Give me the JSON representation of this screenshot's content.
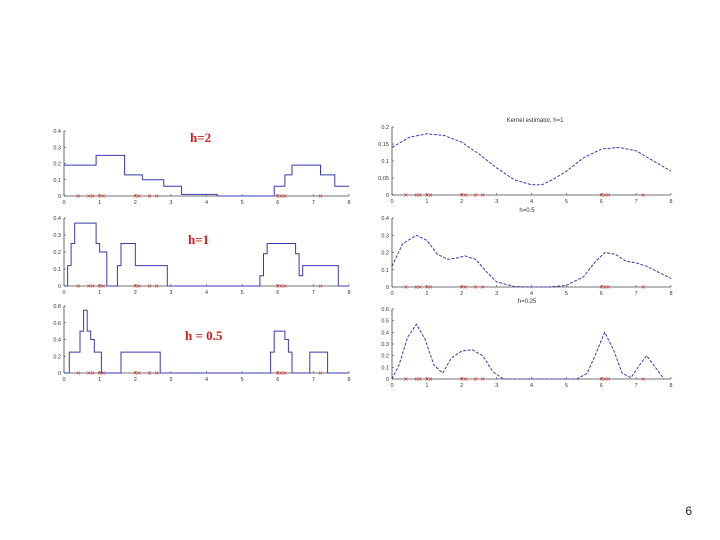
{
  "slide": {
    "number": "6"
  },
  "colors": {
    "curve": "#3a3ab0",
    "marker": "#dd2222",
    "axis": "#444444"
  },
  "sample_points": [
    0.4,
    0.7,
    0.8,
    1.0,
    1.1,
    2.0,
    2.1,
    2.4,
    2.6,
    6.0,
    6.1,
    6.2,
    7.2
  ],
  "chart_data": [
    {
      "type": "line",
      "title": "",
      "label": "h=2",
      "xlim": [
        0,
        8
      ],
      "ylim": [
        0,
        0.4
      ],
      "xticks": [
        "0",
        "1",
        "2",
        "3",
        "4",
        "5",
        "6",
        "7",
        "8"
      ],
      "yticks": [
        "0",
        "0.1",
        "0.2",
        "0.3",
        "0.4"
      ],
      "x": [
        0,
        0.9,
        0.9,
        1.7,
        1.7,
        2.2,
        2.2,
        2.8,
        2.8,
        3.3,
        3.3,
        4.3,
        4.3,
        5.9,
        5.9,
        6.2,
        6.2,
        6.4,
        6.4,
        7.2,
        7.2,
        7.6,
        7.6,
        8.0
      ],
      "y": [
        0.19,
        0.19,
        0.25,
        0.25,
        0.13,
        0.13,
        0.1,
        0.1,
        0.06,
        0.06,
        0.01,
        0.01,
        0.0,
        0.0,
        0.06,
        0.06,
        0.13,
        0.13,
        0.19,
        0.19,
        0.13,
        0.13,
        0.06,
        0.06
      ]
    },
    {
      "type": "line",
      "title": "",
      "label": "h=1",
      "xlim": [
        0,
        8
      ],
      "ylim": [
        0,
        0.4
      ],
      "xticks": [
        "0",
        "1",
        "2",
        "3",
        "4",
        "5",
        "6",
        "7",
        "8"
      ],
      "yticks": [
        "0",
        "0.1",
        "0.2",
        "0.3",
        "0.4"
      ],
      "x": [
        0,
        0.1,
        0.1,
        0.2,
        0.2,
        0.3,
        0.3,
        0.6,
        0.6,
        0.9,
        0.9,
        1.0,
        1.0,
        1.2,
        1.2,
        1.5,
        1.5,
        1.6,
        1.6,
        1.9,
        1.9,
        2.0,
        2.0,
        2.4,
        2.4,
        2.6,
        2.6,
        2.9,
        2.9,
        3.1,
        3.1,
        5.5,
        5.5,
        5.6,
        5.6,
        5.7,
        5.7,
        6.5,
        6.5,
        6.6,
        6.6,
        6.7,
        6.7,
        7.0,
        7.0,
        7.7,
        7.7,
        8.0
      ],
      "y": [
        0.0,
        0.0,
        0.12,
        0.12,
        0.25,
        0.25,
        0.37,
        0.37,
        0.37,
        0.37,
        0.25,
        0.25,
        0.2,
        0.2,
        0.0,
        0.0,
        0.12,
        0.12,
        0.25,
        0.25,
        0.25,
        0.25,
        0.12,
        0.12,
        0.12,
        0.12,
        0.12,
        0.12,
        0.0,
        0.0,
        0.0,
        0.0,
        0.06,
        0.06,
        0.19,
        0.19,
        0.25,
        0.25,
        0.19,
        0.19,
        0.06,
        0.06,
        0.12,
        0.12,
        0.12,
        0.12,
        0.0,
        0.0
      ]
    },
    {
      "type": "line",
      "title": "",
      "label": "h = 0.5",
      "xlim": [
        0,
        8
      ],
      "ylim": [
        0,
        0.8
      ],
      "xticks": [
        "0",
        "1",
        "2",
        "3",
        "4",
        "5",
        "6",
        "7",
        "8"
      ],
      "yticks": [
        "0",
        "0.2",
        "0.4",
        "0.6",
        "0.8"
      ],
      "x": [
        0,
        0.15,
        0.15,
        0.45,
        0.45,
        0.55,
        0.55,
        0.65,
        0.65,
        0.75,
        0.75,
        0.85,
        0.85,
        0.95,
        0.95,
        1.05,
        1.05,
        1.6,
        1.6,
        2.2,
        2.2,
        2.3,
        2.3,
        2.7,
        2.7,
        5.8,
        5.8,
        5.9,
        5.9,
        6.2,
        6.2,
        6.3,
        6.3,
        6.4,
        6.4,
        6.9,
        6.9,
        7.4,
        7.4,
        8.0
      ],
      "y": [
        0.0,
        0.0,
        0.25,
        0.25,
        0.5,
        0.5,
        0.75,
        0.75,
        0.5,
        0.5,
        0.4,
        0.4,
        0.25,
        0.25,
        0.25,
        0.25,
        0.0,
        0.0,
        0.25,
        0.25,
        0.25,
        0.25,
        0.25,
        0.25,
        0.0,
        0.0,
        0.25,
        0.25,
        0.5,
        0.5,
        0.4,
        0.4,
        0.25,
        0.25,
        0.0,
        0.0,
        0.25,
        0.25,
        0.0,
        0.0
      ]
    },
    {
      "type": "line",
      "title": "Kernel estimator, h=1",
      "label": "",
      "xlim": [
        0,
        8
      ],
      "ylim": [
        0,
        0.2
      ],
      "xticks": [
        "0",
        "1",
        "2",
        "3",
        "4",
        "5",
        "6",
        "7",
        "8"
      ],
      "yticks": [
        "0",
        "0.05",
        "0.1",
        "0.15",
        "0.2"
      ],
      "x": [
        0,
        0.5,
        1.0,
        1.5,
        2.0,
        2.5,
        3.0,
        3.5,
        4.0,
        4.3,
        4.6,
        5.0,
        5.5,
        6.0,
        6.5,
        7.0,
        7.5,
        8.0
      ],
      "y": [
        0.14,
        0.17,
        0.18,
        0.175,
        0.155,
        0.12,
        0.08,
        0.045,
        0.03,
        0.03,
        0.045,
        0.07,
        0.11,
        0.135,
        0.14,
        0.13,
        0.1,
        0.07
      ]
    },
    {
      "type": "line",
      "title": "h=0.5",
      "label": "",
      "xlim": [
        0,
        8
      ],
      "ylim": [
        0,
        0.4
      ],
      "xticks": [
        "0",
        "1",
        "2",
        "3",
        "4",
        "5",
        "6",
        "7",
        "8"
      ],
      "yticks": [
        "0",
        "0.1",
        "0.2",
        "0.3",
        "0.4"
      ],
      "x": [
        0,
        0.3,
        0.7,
        1.0,
        1.3,
        1.6,
        1.9,
        2.1,
        2.4,
        2.7,
        3.0,
        3.5,
        4.0,
        4.5,
        5.0,
        5.5,
        5.8,
        6.1,
        6.4,
        6.7,
        7.0,
        7.3,
        7.6,
        8.0
      ],
      "y": [
        0.12,
        0.25,
        0.3,
        0.27,
        0.19,
        0.16,
        0.17,
        0.18,
        0.16,
        0.09,
        0.03,
        0.003,
        0.0,
        0.0,
        0.01,
        0.06,
        0.14,
        0.2,
        0.19,
        0.15,
        0.14,
        0.12,
        0.09,
        0.05
      ]
    },
    {
      "type": "line",
      "title": "h=0.25",
      "label": "",
      "xlim": [
        0,
        8
      ],
      "ylim": [
        0,
        0.6
      ],
      "xticks": [
        "0",
        "1",
        "2",
        "3",
        "4",
        "5",
        "6",
        "7",
        "8"
      ],
      "yticks": [
        "0",
        "0.1",
        "0.2",
        "0.3",
        "0.4",
        "0.5",
        "0.6"
      ],
      "x": [
        0,
        0.2,
        0.45,
        0.7,
        0.95,
        1.2,
        1.45,
        1.7,
        2.0,
        2.3,
        2.6,
        2.9,
        3.2,
        5.3,
        5.6,
        5.85,
        6.1,
        6.35,
        6.6,
        6.85,
        7.1,
        7.3,
        7.55,
        7.8
      ],
      "y": [
        0.0,
        0.12,
        0.36,
        0.47,
        0.34,
        0.12,
        0.05,
        0.18,
        0.24,
        0.25,
        0.2,
        0.06,
        0.0,
        0.0,
        0.05,
        0.22,
        0.4,
        0.25,
        0.05,
        0.01,
        0.12,
        0.2,
        0.1,
        0.0
      ]
    }
  ]
}
